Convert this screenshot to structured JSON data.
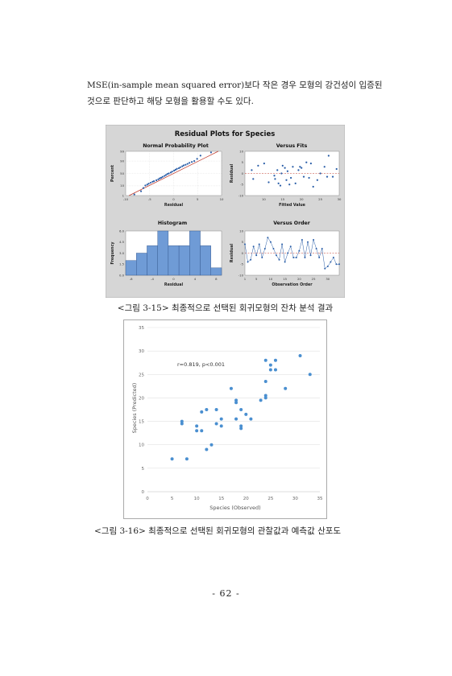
{
  "body_text": {
    "line1": "MSE(in-sample mean squared error)보다 작은 경우 모형의 강건성이 입증된",
    "line2": "것으로 판단하고 해당 모형을 활용할 수도 있다."
  },
  "fig15": {
    "title": "Residual Plots for Species",
    "caption": "<그림 3-15> 최종적으로 선택된 회귀모형의 잔차 분석 결과",
    "panels": {
      "npp": {
        "title": "Normal Probability Plot",
        "xlabel": "Residual",
        "ylabel": "Percent",
        "xticks": [
          "-10",
          "-5",
          "0",
          "5",
          "10"
        ],
        "yticks": [
          "99",
          "90",
          "50",
          "10",
          "1"
        ]
      },
      "vfits": {
        "title": "Versus Fits",
        "xlabel": "Fitted Value",
        "ylabel": "Residual",
        "xticks": [
          "10",
          "15",
          "20",
          "25",
          "30"
        ],
        "yticks": [
          "10",
          "5",
          "0",
          "-5",
          "-10"
        ]
      },
      "hist": {
        "title": "Histogram",
        "xlabel": "Residual",
        "ylabel": "Frequency",
        "xticks": [
          "-8",
          "-4",
          "0",
          "4",
          "8"
        ],
        "yticks": [
          "6.0",
          "4.5",
          "3.0",
          "1.5",
          "0.0"
        ]
      },
      "vorder": {
        "title": "Versus Order",
        "xlabel": "Observation Order",
        "ylabel": "Residual",
        "xticks": [
          "1",
          "5",
          "10",
          "15",
          "20",
          "25",
          "30"
        ],
        "yticks": [
          "10",
          "5",
          "0",
          "-5",
          "-10"
        ]
      }
    }
  },
  "fig16": {
    "caption": "<그림 3-16> 최종적으로 선택된 회귀모형의 관찰값과 예측값 산포도",
    "xlabel": "Species (Observed)",
    "ylabel": "Species (Predicted)",
    "annotation": "r=0.819, p<0.001",
    "xticks": [
      "0",
      "5",
      "10",
      "15",
      "20",
      "25",
      "30",
      "35"
    ],
    "yticks": [
      "0",
      "5",
      "10",
      "15",
      "20",
      "25",
      "30",
      "35"
    ]
  },
  "page_number": "- 62 -",
  "colors": {
    "marker": "#4a8fd0",
    "bar": "#6f9bd6",
    "fit_line": "#c0392b",
    "panel_bg": "#d6d6d6"
  },
  "chart_data": [
    {
      "type": "scatter",
      "title": "Normal Probability Plot",
      "xlabel": "Residual",
      "ylabel": "Percent",
      "xlim": [
        -10,
        10
      ],
      "x": [
        -8.2,
        -6.8,
        -6.3,
        -5.9,
        -5.5,
        -5.2,
        -4.8,
        -4.4,
        -4.1,
        -3.6,
        -3.2,
        -2.9,
        -2.6,
        -2.3,
        -1.9,
        -1.6,
        -1.3,
        -1.0,
        -0.6,
        -0.3,
        0.1,
        0.4,
        0.7,
        1.1,
        1.4,
        1.8,
        2.1,
        2.5,
        2.9,
        3.3,
        3.8,
        4.3,
        4.9,
        5.6,
        7.8
      ],
      "y": [
        2,
        5,
        8,
        11,
        14,
        17,
        20,
        23,
        25,
        28,
        31,
        34,
        36,
        39,
        42,
        45,
        48,
        50,
        53,
        56,
        59,
        62,
        65,
        67,
        70,
        73,
        76,
        78,
        81,
        84,
        87,
        90,
        92,
        95,
        98
      ]
    },
    {
      "type": "scatter",
      "title": "Versus Fits",
      "xlabel": "Fitted Value",
      "ylabel": "Residual",
      "xlim": [
        5,
        30
      ],
      "ylim": [
        -10,
        10
      ],
      "x": [
        6.8,
        7.2,
        8.5,
        10.1,
        11.3,
        12.8,
        13.0,
        13.6,
        13.9,
        14.4,
        14.7,
        15.0,
        15.6,
        16.0,
        16.3,
        16.8,
        17.2,
        17.7,
        18.4,
        19.2,
        19.6,
        20.0,
        20.6,
        21.3,
        22.0,
        22.5,
        23.1,
        24.2,
        25.0,
        26.1,
        26.8,
        27.2,
        28.3,
        29.3
      ],
      "y": [
        1.5,
        -2.5,
        3.5,
        4.5,
        -4,
        -1,
        -2.5,
        1.5,
        -4.5,
        -5.5,
        0,
        3.5,
        2.5,
        -3,
        1,
        -5,
        -2,
        3,
        -4.5,
        1.5,
        3,
        2.5,
        -1.5,
        5,
        -2,
        4.5,
        -6,
        -3,
        0,
        3,
        -1.5,
        8,
        -1.5,
        2
      ]
    },
    {
      "type": "bar",
      "title": "Histogram",
      "xlabel": "Residual",
      "ylabel": "Frequency",
      "categories": [
        "-8",
        "-6",
        "-4",
        "-2",
        "0",
        "2",
        "4",
        "6",
        "8"
      ],
      "values": [
        2,
        3,
        4,
        6,
        4,
        4,
        6,
        4,
        1
      ]
    },
    {
      "type": "line",
      "title": "Versus Order",
      "xlabel": "Observation Order",
      "ylabel": "Residual",
      "xlim": [
        1,
        34
      ],
      "ylim": [
        -10,
        10
      ],
      "x": [
        1,
        2,
        3,
        4,
        5,
        6,
        7,
        8,
        9,
        10,
        11,
        12,
        13,
        14,
        15,
        16,
        17,
        18,
        19,
        20,
        21,
        22,
        23,
        24,
        25,
        26,
        27,
        28,
        29,
        30,
        31,
        32,
        33,
        34
      ],
      "y": [
        4,
        -4,
        -3,
        3,
        -1,
        4,
        -2,
        2,
        7,
        5,
        2,
        -1,
        -3,
        4,
        -4,
        0,
        3,
        -2,
        -2,
        1,
        6,
        -2,
        5,
        -1,
        6,
        2,
        -2,
        2,
        -7,
        -6,
        -4,
        -2,
        -5,
        -5
      ]
    },
    {
      "type": "scatter",
      "xlabel": "Species (Observed)",
      "ylabel": "Species (Predicted)",
      "xlim": [
        0,
        35
      ],
      "ylim": [
        0,
        35
      ],
      "x": [
        5,
        7,
        7,
        8,
        10,
        10,
        11,
        11,
        12,
        12,
        13,
        14,
        14,
        15,
        15,
        17,
        18,
        18,
        18,
        19,
        19,
        19,
        20,
        21,
        23,
        24,
        24,
        24,
        24,
        25,
        25,
        26,
        26,
        28,
        31,
        33
      ],
      "y": [
        7,
        14.5,
        15,
        7,
        14,
        13,
        17,
        13,
        9,
        17.5,
        10,
        17.5,
        14.5,
        14,
        15.5,
        22,
        19,
        19.5,
        15.5,
        17.5,
        13.5,
        14,
        16.5,
        15.5,
        19.5,
        20,
        20.5,
        23.5,
        28,
        27,
        26,
        26,
        28,
        22,
        29,
        25
      ]
    }
  ]
}
